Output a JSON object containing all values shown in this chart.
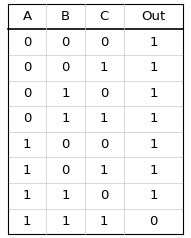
{
  "headers": [
    "A",
    "B",
    "C",
    "Out"
  ],
  "rows": [
    [
      "0",
      "0",
      "0",
      "1"
    ],
    [
      "0",
      "0",
      "1",
      "1"
    ],
    [
      "0",
      "1",
      "0",
      "1"
    ],
    [
      "0",
      "1",
      "1",
      "1"
    ],
    [
      "1",
      "0",
      "0",
      "1"
    ],
    [
      "1",
      "0",
      "1",
      "1"
    ],
    [
      "1",
      "1",
      "0",
      "1"
    ],
    [
      "1",
      "1",
      "1",
      "0"
    ]
  ],
  "bg_color": "#ffffff",
  "grid_color": "#c8c8c8",
  "header_line_color": "#000000",
  "text_color": "#000000",
  "font_size": 9.5,
  "header_font_size": 9.5,
  "header_font_weight": "normal",
  "figsize": [
    1.91,
    2.38
  ],
  "dpi": 100
}
